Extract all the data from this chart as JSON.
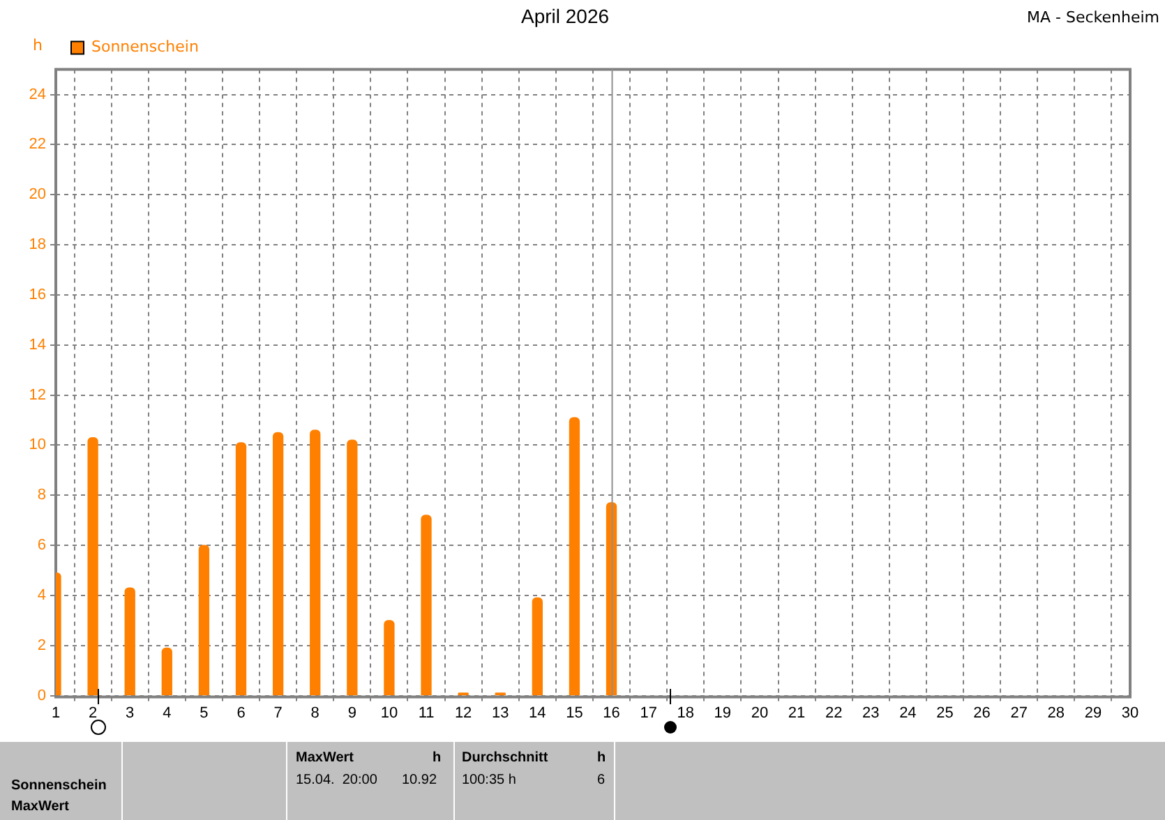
{
  "chart_data": {
    "type": "bar",
    "title": "April 2026",
    "ylabel": "h",
    "x": [
      1,
      2,
      3,
      4,
      5,
      6,
      7,
      8,
      9,
      10,
      11,
      12,
      13,
      14,
      15,
      16
    ],
    "series": [
      {
        "name": "Sonnenschein",
        "color": "#ff8000",
        "values": [
          4.9,
          10.3,
          4.3,
          1.9,
          6.0,
          10.1,
          10.5,
          10.6,
          10.2,
          3.0,
          7.2,
          0.1,
          0.1,
          3.9,
          11.1,
          7.7
        ]
      }
    ],
    "xlim": [
      1,
      30
    ],
    "xticks": [
      1,
      2,
      3,
      4,
      5,
      6,
      7,
      8,
      9,
      10,
      11,
      12,
      13,
      14,
      15,
      16,
      17,
      18,
      19,
      20,
      21,
      22,
      23,
      24,
      25,
      26,
      27,
      28,
      29,
      30
    ],
    "ylim": [
      0,
      25
    ],
    "yticks": [
      0,
      2,
      4,
      6,
      8,
      10,
      12,
      14,
      16,
      18,
      20,
      22,
      24
    ],
    "ref_lines": [
      {
        "axis": "x",
        "value": 16,
        "color": "#909090"
      }
    ],
    "grid": true,
    "legend": "top left",
    "annotations": [
      "MA - Seckenheim",
      "Sonnenschein",
      "MaxWert",
      "MaxWert",
      "h",
      "15.04.  20:00",
      "10.92",
      "Durchschnitt",
      "h",
      "100:35 h",
      "6"
    ]
  }
}
